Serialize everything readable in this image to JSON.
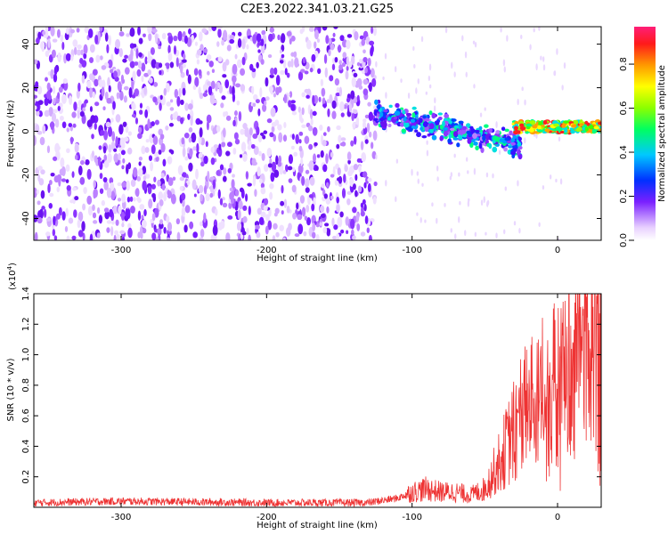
{
  "title": "C2E3.2022.341.03.21.G25",
  "chart_data": [
    {
      "type": "heatmap",
      "xlabel": "Height of straight line (km)",
      "ylabel": "Frequency (Hz)",
      "xlim": [
        -360,
        30
      ],
      "ylim": [
        -50,
        48
      ],
      "xticks": [
        -300,
        -200,
        -100,
        0
      ],
      "yticks": [
        -40,
        -20,
        0,
        20,
        40
      ],
      "colorbar": {
        "label": "Normalized spectral amplitude",
        "range": [
          0,
          0.97
        ],
        "ticks": [
          0.0,
          0.2,
          0.4,
          0.6,
          0.8
        ]
      },
      "regions": [
        {
          "x_range": [
            -360,
            -125
          ],
          "freq_range": [
            -50,
            48
          ],
          "level": "low",
          "pattern": "scattered noise"
        },
        {
          "x_range": [
            -125,
            -25
          ],
          "freq_center_start": 8,
          "freq_center_end": -6,
          "level": "medium",
          "pattern": "descending band"
        },
        {
          "x_range": [
            -30,
            30
          ],
          "freq_center": 2,
          "level": "high",
          "pattern": "narrow band"
        }
      ]
    },
    {
      "type": "line",
      "xlabel": "Height of straight line (km)",
      "ylabel": "SNR (10 * v/v)",
      "y_multiplier": "(x10^4)",
      "y_multiplier_base": "(x10",
      "y_multiplier_exp": "4",
      "y_multiplier_close": ")",
      "xlim": [
        -360,
        30
      ],
      "ylim": [
        0,
        1.4
      ],
      "xticks": [
        -300,
        -200,
        -100,
        0
      ],
      "yticks": [
        0.2,
        0.4,
        0.6,
        0.8,
        1.0,
        1.2,
        1.4
      ],
      "series_color": "#ee3333",
      "x": [
        -360,
        -300,
        -200,
        -130,
        -110,
        -100,
        -90,
        -80,
        -70,
        -60,
        -50,
        -40,
        -30,
        -20,
        -10,
        0,
        10,
        20,
        30
      ],
      "y": [
        0.03,
        0.04,
        0.03,
        0.03,
        0.06,
        0.1,
        0.12,
        0.1,
        0.1,
        0.08,
        0.12,
        0.3,
        0.5,
        0.7,
        0.75,
        0.8,
        0.95,
        1.1,
        1.25
      ]
    }
  ]
}
